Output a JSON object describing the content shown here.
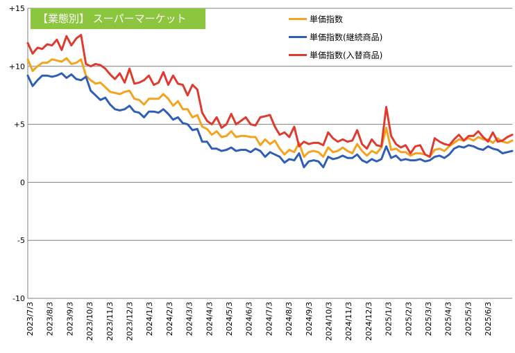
{
  "chart_data": {
    "type": "line",
    "title": "【業態別】 スーパーマーケット",
    "xlabel": "",
    "ylabel": "",
    "ylim": [
      -10,
      15
    ],
    "y_ticks": [
      "+15",
      "+10",
      "+5",
      "0",
      "-5",
      "-10"
    ],
    "y_tick_values": [
      15,
      10,
      5,
      0,
      -5,
      -10
    ],
    "x_tick_labels": [
      "2023/7/3",
      "2023/8/3",
      "2023/9/3",
      "2023/10/3",
      "2023/11/3",
      "2023/12/3",
      "2024/1/3",
      "2024/2/3",
      "2024/3/3",
      "2024/4/3",
      "2024/5/3",
      "2024/6/3",
      "2024/7/3",
      "2024/8/3",
      "2024/9/3",
      "2024/10/3",
      "2024/11/3",
      "2024/12/3",
      "2025/1/3",
      "2025/2/3",
      "2025/3/3",
      "2025/4/3",
      "2025/5/3",
      "2025/6/3"
    ],
    "legend_position": "top-right",
    "grid": "horizontal",
    "series": [
      {
        "name": "単価指数",
        "color": "#f5a21e",
        "values": [
          10.6,
          9.6,
          10.0,
          10.3,
          10.3,
          10.6,
          10.5,
          10.4,
          10.7,
          10.2,
          10.3,
          10.6,
          9.2,
          8.8,
          8.5,
          8.6,
          8.2,
          7.8,
          7.7,
          7.6,
          7.8,
          7.9,
          7.2,
          7.1,
          6.7,
          7.2,
          7.2,
          7.2,
          7.6,
          7.2,
          6.6,
          7.0,
          6.3,
          6.3,
          5.6,
          5.8,
          4.8,
          4.6,
          4.1,
          4.4,
          3.9,
          4.0,
          4.4,
          3.9,
          4.0,
          4.0,
          3.9,
          3.9,
          3.2,
          3.7,
          3.3,
          3.6,
          2.9,
          2.4,
          2.8,
          2.6,
          3.4,
          2.2,
          2.6,
          2.7,
          2.6,
          2.2,
          3.0,
          2.6,
          2.7,
          3.0,
          2.7,
          2.5,
          3.3,
          2.7,
          2.3,
          2.7,
          2.5,
          3.0,
          4.7,
          2.8,
          2.9,
          2.6,
          2.6,
          2.3,
          2.5,
          2.5,
          2.4,
          2.2,
          2.8,
          2.9,
          2.7,
          3.1,
          3.4,
          3.7,
          3.6,
          3.8,
          3.6,
          3.9,
          3.7,
          3.7,
          3.4,
          3.8,
          3.5,
          3.4,
          3.6
        ]
      },
      {
        "name": "単価指数(継続商品)",
        "color": "#2e5eb8",
        "values": [
          9.2,
          8.3,
          8.8,
          9.2,
          9.2,
          9.1,
          9.2,
          9.4,
          9.0,
          9.3,
          8.9,
          8.8,
          9.1,
          7.9,
          7.5,
          7.1,
          7.3,
          6.7,
          6.3,
          6.2,
          6.3,
          6.6,
          6.1,
          6.0,
          5.6,
          6.1,
          6.1,
          6.0,
          6.3,
          5.9,
          5.4,
          5.6,
          5.1,
          5.0,
          4.5,
          4.6,
          3.5,
          3.5,
          2.9,
          2.9,
          2.7,
          2.8,
          3.0,
          2.7,
          2.8,
          2.8,
          2.6,
          2.9,
          2.7,
          2.2,
          2.6,
          2.4,
          2.2,
          1.7,
          2.0,
          1.9,
          2.5,
          1.3,
          1.8,
          1.9,
          1.8,
          1.3,
          2.2,
          2.0,
          2.1,
          2.3,
          2.1,
          2.1,
          2.4,
          1.9,
          1.7,
          2.0,
          1.8,
          2.0,
          3.1,
          2.1,
          2.3,
          1.9,
          2.0,
          1.9,
          1.9,
          2.0,
          1.8,
          1.9,
          2.2,
          2.3,
          2.1,
          2.4,
          2.9,
          3.1,
          3.0,
          3.2,
          3.1,
          2.9,
          2.8,
          3.1,
          2.9,
          2.8,
          2.5,
          2.6,
          2.7
        ]
      },
      {
        "name": "単価指数(入替商品)",
        "color": "#e03a2e",
        "values": [
          12.0,
          11.1,
          11.6,
          11.5,
          11.9,
          11.8,
          12.3,
          11.4,
          12.6,
          11.8,
          12.4,
          12.7,
          10.2,
          10.0,
          10.2,
          10.1,
          9.8,
          9.3,
          8.9,
          9.4,
          8.6,
          9.8,
          8.5,
          8.6,
          8.8,
          9.2,
          8.4,
          8.6,
          9.5,
          8.4,
          9.2,
          8.5,
          8.4,
          7.5,
          8.4,
          8.0,
          6.0,
          5.3,
          5.0,
          5.6,
          4.7,
          5.0,
          5.9,
          5.0,
          5.3,
          5.6,
          5.0,
          4.9,
          5.6,
          5.7,
          5.8,
          4.8,
          4.1,
          4.3,
          3.9,
          4.8,
          3.1,
          3.5,
          3.3,
          3.4,
          3.4,
          3.2,
          4.3,
          3.8,
          3.5,
          3.7,
          3.5,
          3.6,
          4.5,
          3.3,
          2.9,
          3.7,
          3.2,
          3.1,
          6.5,
          4.0,
          3.3,
          3.0,
          3.2,
          2.5,
          3.1,
          3.2,
          2.4,
          2.2,
          3.8,
          3.5,
          3.3,
          3.2,
          3.7,
          4.1,
          3.6,
          4.0,
          4.0,
          4.4,
          3.9,
          3.5,
          4.3,
          3.5,
          3.6,
          3.9,
          4.1
        ]
      }
    ]
  }
}
